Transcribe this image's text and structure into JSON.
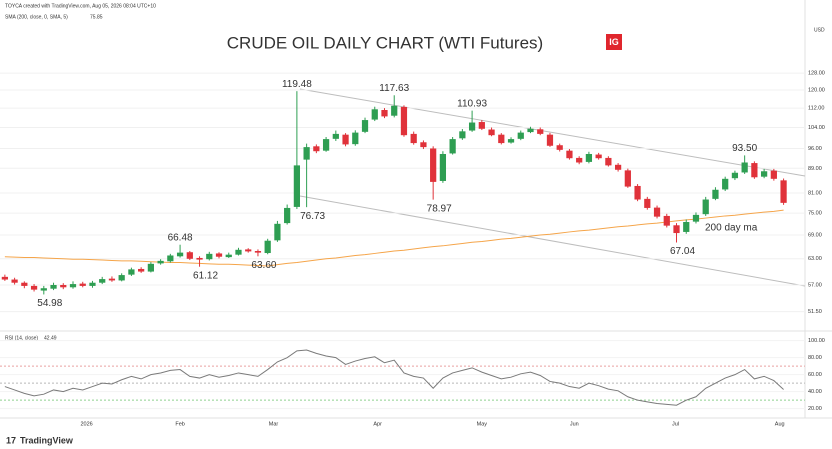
{
  "chart_data": {
    "type": "candlestick",
    "credit": "TOYCA created with TradingView.com, Aug 05, 2026 08:04 UTC+10",
    "title": "CRUDE OIL DAILY CHART (WTI Futures)",
    "logo": "IG",
    "currency": "USD",
    "footer": "TradingView",
    "log_scale": true,
    "grid": true,
    "up_color": "#2e9e52",
    "down_color": "#e0323a",
    "xlim": [
      -0.5,
      82.2
    ],
    "xticks": [
      {
        "value": 8.4,
        "label": "2026"
      },
      {
        "value": 18,
        "label": "Feb"
      },
      {
        "value": 27.6,
        "label": "Mar"
      },
      {
        "value": 38.3,
        "label": "Apr"
      },
      {
        "value": 49,
        "label": "May"
      },
      {
        "value": 58.5,
        "label": "Jun"
      },
      {
        "value": 68.9,
        "label": "Jul"
      },
      {
        "value": 79.6,
        "label": "Aug"
      }
    ],
    "ylim": [
      48,
      158
    ],
    "yticks": [
      {
        "value": 128,
        "label": "128.00"
      },
      {
        "value": 120,
        "label": "120.00"
      },
      {
        "value": 112,
        "label": "112.00"
      },
      {
        "value": 104,
        "label": "104.00"
      },
      {
        "value": 96,
        "label": "96.00"
      },
      {
        "value": 89,
        "label": "89.00"
      },
      {
        "value": 81,
        "label": "81.00"
      },
      {
        "value": 75,
        "label": "75.00"
      },
      {
        "value": 69,
        "label": "69.00"
      },
      {
        "value": 63,
        "label": "63.00"
      },
      {
        "value": 57,
        "label": "57.00"
      },
      {
        "value": 51.5,
        "label": "51.50"
      }
    ],
    "open": [
      58.8,
      58.2,
      57.5,
      56.8,
      55.8,
      56.2,
      57.0,
      56.5,
      57.3,
      56.8,
      57.5,
      58.4,
      58.0,
      59.3,
      60.6,
      60.0,
      61.9,
      62.4,
      63.6,
      64.6,
      63.2,
      62.9,
      64.3,
      63.4,
      64.0,
      65.3,
      64.9,
      64.4,
      67.6,
      72.2,
      76.8,
      92.0,
      96.8,
      95.2,
      99.6,
      101.2,
      97.6,
      102.3,
      107.2,
      111.2,
      108.8,
      112.5,
      101.5,
      98.3,
      96.0,
      84.8,
      94.2,
      99.8,
      102.8,
      106.2,
      103.2,
      101.2,
      98.2,
      99.6,
      102.2,
      103.3,
      101.2,
      97.2,
      95.2,
      92.6,
      91.2,
      93.8,
      92.6,
      90.2,
      88.3,
      83.2,
      79.2,
      76.6,
      74.2,
      71.6,
      69.8,
      72.6,
      74.7,
      79.2,
      82.1,
      85.7,
      87.6,
      90.8,
      86.2,
      88.2,
      85.0
    ],
    "high": [
      59.3,
      58.6,
      57.8,
      57.2,
      56.8,
      57.5,
      57.4,
      57.8,
      57.7,
      57.9,
      58.8,
      58.9,
      59.6,
      60.9,
      61.0,
      62.2,
      62.9,
      64.2,
      66.48,
      64.9,
      63.6,
      64.7,
      64.6,
      64.5,
      65.7,
      65.6,
      65.3,
      68.0,
      72.8,
      77.5,
      119.48,
      97.8,
      97.5,
      100.3,
      102.8,
      101.8,
      102.9,
      108.0,
      112.6,
      112.0,
      117.63,
      113.2,
      102.4,
      99.0,
      96.8,
      95.0,
      100.3,
      103.4,
      110.93,
      107.0,
      104.0,
      101.8,
      100.2,
      102.8,
      104.3,
      104.0,
      101.9,
      97.8,
      95.8,
      93.2,
      94.8,
      94.4,
      93.2,
      90.8,
      88.9,
      83.8,
      79.8,
      77.2,
      74.8,
      72.2,
      73.2,
      75.2,
      79.8,
      82.8,
      86.2,
      88.2,
      93.5,
      91.4,
      88.8,
      88.8,
      85.6
    ],
    "low": [
      57.9,
      57.1,
      56.3,
      55.6,
      54.98,
      55.9,
      56.1,
      56.2,
      56.5,
      56.4,
      57.2,
      57.7,
      57.8,
      59.0,
      59.7,
      59.8,
      61.6,
      62.1,
      63.3,
      62.7,
      61.12,
      62.6,
      63.1,
      63.2,
      63.8,
      64.5,
      63.6,
      64.1,
      67.2,
      71.8,
      76.2,
      76.73,
      94.3,
      94.8,
      98.8,
      96.8,
      97.0,
      101.8,
      106.6,
      107.8,
      108.1,
      100.4,
      97.4,
      95.8,
      78.97,
      84.2,
      93.8,
      99.2,
      102.3,
      103.0,
      100.6,
      97.5,
      97.8,
      99.1,
      101.8,
      101.0,
      96.6,
      94.9,
      92.0,
      90.4,
      90.7,
      92.0,
      89.6,
      87.9,
      82.6,
      78.5,
      76.0,
      73.5,
      71.0,
      67.04,
      69.3,
      72.1,
      74.2,
      78.8,
      81.6,
      85.1,
      87.1,
      85.5,
      85.7,
      84.9,
      77.4
    ],
    "close": [
      58.2,
      57.5,
      56.8,
      56.0,
      56.3,
      57.0,
      56.5,
      57.2,
      56.8,
      57.5,
      58.3,
      58.0,
      59.2,
      60.5,
      60.0,
      61.8,
      62.5,
      63.8,
      64.5,
      63.0,
      62.8,
      64.2,
      63.5,
      64.0,
      65.2,
      64.8,
      64.5,
      67.5,
      72.0,
      76.5,
      90.0,
      96.5,
      95.0,
      99.5,
      101.5,
      97.5,
      102.0,
      107.0,
      111.5,
      108.5,
      113.0,
      101.0,
      98.0,
      96.5,
      84.5,
      94.0,
      99.5,
      102.5,
      106.0,
      103.5,
      101.0,
      98.0,
      99.5,
      102.0,
      103.5,
      101.5,
      97.0,
      95.5,
      92.5,
      91.0,
      94.0,
      92.5,
      90.0,
      88.5,
      83.0,
      79.0,
      76.5,
      74.0,
      71.5,
      69.5,
      72.5,
      74.5,
      79.0,
      82.0,
      85.5,
      87.5,
      91.0,
      86.0,
      88.0,
      85.5,
      78.0
    ],
    "high_labels": {
      "18": "66.48",
      "30": "119.48",
      "40": "117.63",
      "48": "110.93",
      "76": "93.50"
    },
    "low_labels": {
      "4": "54.98",
      "20": "61.12",
      "26": "63.60",
      "31": "76.73",
      "44": "78.97",
      "69": "67.04"
    },
    "ma": {
      "name": "SMA (200, close, 0, SMA, 5)",
      "note": "200 day ma",
      "color": "#f5a54a",
      "values": [
        63.5,
        63.4,
        63.3,
        63.3,
        63.2,
        63.1,
        63.0,
        62.9,
        62.9,
        62.8,
        62.7,
        62.6,
        62.5,
        62.5,
        62.4,
        62.3,
        62.2,
        62.1,
        62.1,
        62.0,
        61.9,
        61.8,
        61.7,
        61.7,
        61.6,
        61.5,
        61.4,
        61.3,
        61.6,
        61.9,
        62.1,
        62.4,
        62.7,
        63.0,
        63.2,
        63.5,
        63.8,
        64.0,
        64.3,
        64.6,
        64.9,
        65.1,
        65.4,
        65.7,
        66.0,
        66.2,
        66.5,
        66.8,
        67.1,
        67.3,
        67.6,
        67.9,
        68.1,
        68.4,
        68.7,
        69.0,
        69.2,
        69.5,
        69.8,
        70.1,
        70.3,
        70.6,
        70.9,
        71.2,
        71.4,
        71.7,
        72.0,
        72.2,
        72.5,
        72.8,
        73.1,
        73.3,
        73.6,
        73.9,
        74.2,
        74.4,
        74.7,
        75.0,
        75.3,
        75.5,
        75.85
      ]
    },
    "rsi": {
      "name": "RSI (14, close)",
      "color": "#7a7a7a",
      "ylim": [
        9,
        109
      ],
      "yticks": [
        {
          "value": 100,
          "label": "100.00"
        },
        {
          "value": 80,
          "label": "80.00"
        },
        {
          "value": 60,
          "label": "60.00"
        },
        {
          "value": 40,
          "label": "40.00"
        },
        {
          "value": 20,
          "label": "20.00"
        }
      ],
      "levels": [
        70,
        50,
        30
      ],
      "level_colors": [
        "#e9a0a0",
        "#b8b8b8",
        "#8fd18f"
      ],
      "values": [
        46,
        42,
        38,
        35,
        37,
        42,
        40,
        44,
        42,
        46,
        50,
        49,
        54,
        58,
        55,
        60,
        62,
        65,
        66,
        58,
        56,
        60,
        57,
        59,
        62,
        60,
        58,
        66,
        75,
        80,
        88,
        89,
        85,
        82,
        80,
        72,
        76,
        79,
        81,
        74,
        77,
        62,
        58,
        56,
        44,
        56,
        62,
        65,
        68,
        63,
        59,
        55,
        57,
        61,
        63,
        59,
        52,
        50,
        46,
        44,
        50,
        47,
        43,
        41,
        34,
        30,
        28,
        26,
        25,
        24,
        30,
        34,
        44,
        50,
        56,
        60,
        66,
        55,
        58,
        53,
        42.49
      ]
    }
  }
}
